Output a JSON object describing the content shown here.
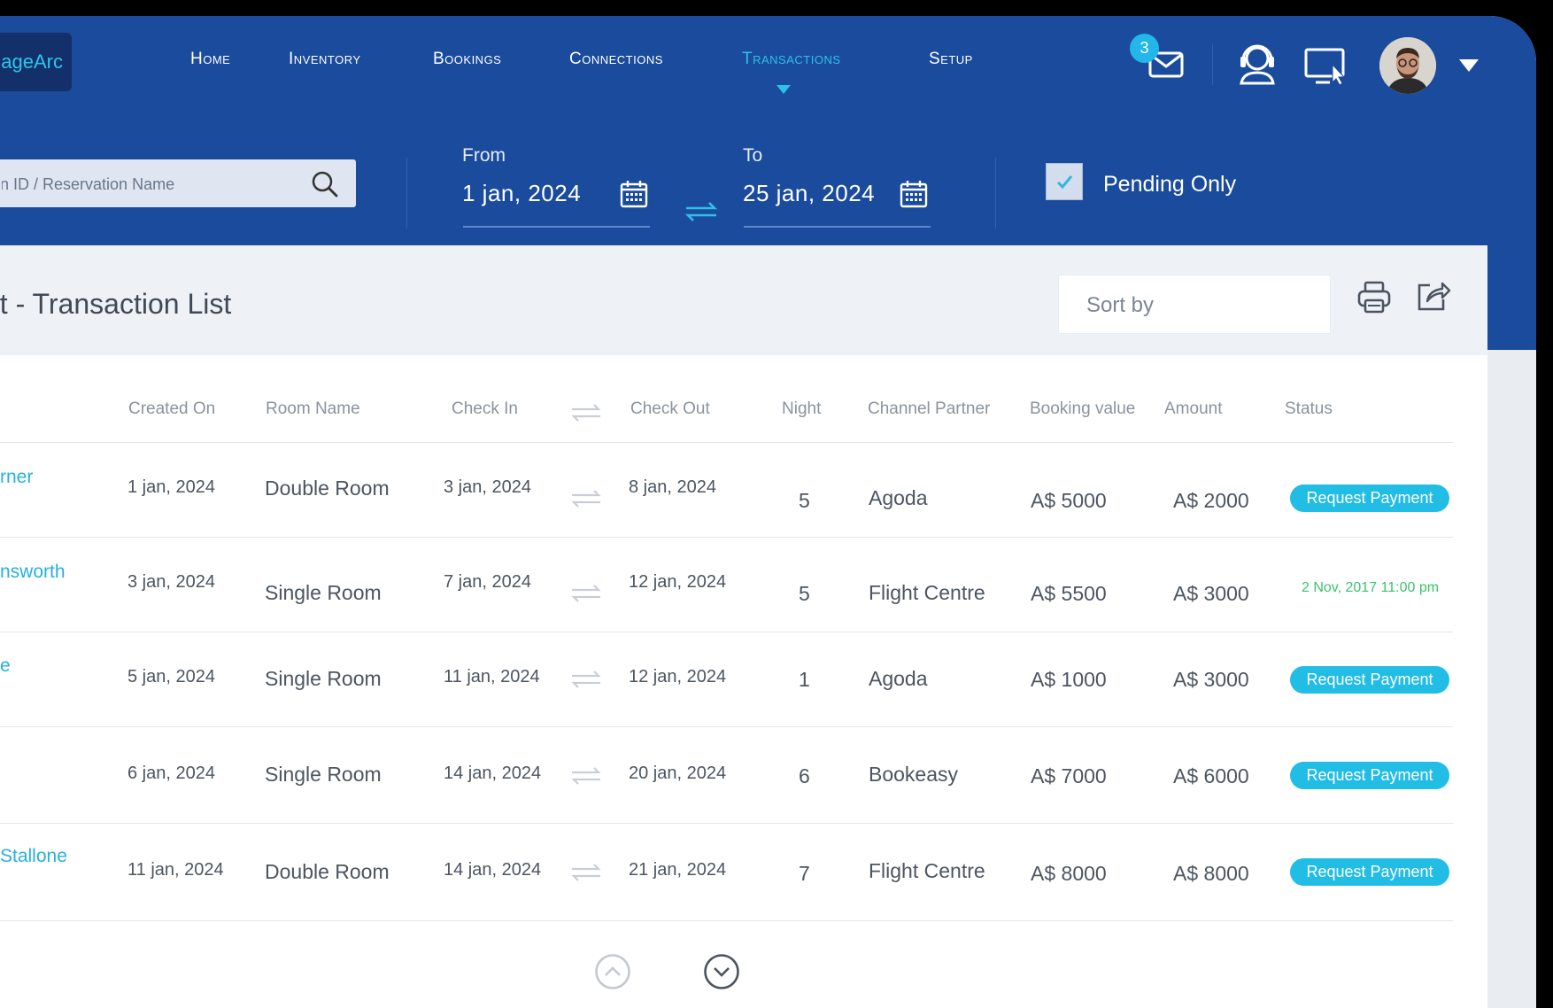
{
  "nav": {
    "logo": "ageArc",
    "items": [
      "Home",
      "Inventory",
      "Bookings",
      "Connections",
      "Transactions",
      "Setup"
    ],
    "active": "Transactions",
    "message_count": "3",
    "accent": "#2fc0ea",
    "background": "#1b4b9c"
  },
  "filters": {
    "search_placeholder": "on ID / Reservation Name",
    "from_label": "From",
    "from_value": "1 jan, 2024",
    "to_label": "To",
    "to_value": "25 jan, 2024",
    "pending_label": "Pending Only",
    "pending_checked": true
  },
  "panel": {
    "title": "nt - Transaction List",
    "sort_placeholder": "Sort by"
  },
  "table": {
    "headers": {
      "created_on": "Created On",
      "room_name": "Room Name",
      "check_in": "Check In",
      "check_out": "Check Out",
      "night": "Night",
      "channel": "Channel Partner",
      "booking_value": "Booking value",
      "amount": "Amount",
      "status": "Status"
    },
    "rows": [
      {
        "name": "rner",
        "created": "1 jan, 2024",
        "room": "Double  Room",
        "checkin": "3 jan, 2024",
        "checkout": "8 jan, 2024",
        "night": "5",
        "channel": "Agoda",
        "booking": "A$ 5000",
        "amount": "A$ 2000",
        "status": "Request Payment"
      },
      {
        "name": "nsworth",
        "created": "3 jan, 2024",
        "room": "Single Room",
        "checkin": "7 jan, 2024",
        "checkout": "12 jan, 2024",
        "night": "5",
        "channel": "Flight Centre",
        "booking": "A$ 5500",
        "amount": "A$ 3000",
        "status": "2 Nov, 2017  11:00 pm"
      },
      {
        "name": "e",
        "created": "5 jan, 2024",
        "room": "Single Room",
        "checkin": "11 jan, 2024",
        "checkout": "12 jan, 2024",
        "night": "1",
        "channel": "Agoda",
        "booking": "A$ 1000",
        "amount": "A$ 3000",
        "status": "Request Payment"
      },
      {
        "name": "",
        "created": "6 jan, 2024",
        "room": "Single Room",
        "checkin": "14 jan, 2024",
        "checkout": "20 jan, 2024",
        "night": "6",
        "channel": "Bookeasy",
        "booking": "A$ 7000",
        "amount": "A$ 6000",
        "status": "Request Payment"
      },
      {
        "name": "Stallone",
        "created": "11 jan, 2024",
        "room": "Double  Room",
        "checkin": "14 jan, 2024",
        "checkout": "21 jan, 2024",
        "night": "7",
        "channel": "Flight Centre",
        "booking": "A$ 8000",
        "amount": "A$ 8000",
        "status": "Request Payment"
      }
    ]
  }
}
